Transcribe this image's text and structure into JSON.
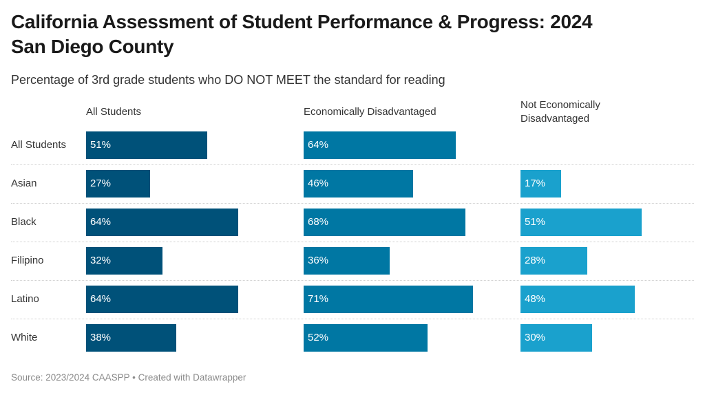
{
  "title_line1": "California Assessment of Student Performance & Progress: 2024",
  "title_line2": "San Diego County",
  "subtitle": "Percentage of 3rd grade students who DO NOT MEET the standard for reading",
  "source": "Source: 2023/2024 CAASPP • Created with Datawrapper",
  "chart_data": {
    "type": "bar",
    "orientation": "horizontal",
    "layout": "small-multiples (3 columns)",
    "title": "California Assessment of Student Performance & Progress: 2024 San Diego County",
    "subtitle": "Percentage of 3rd grade students who DO NOT MEET the standard for reading",
    "categories": [
      "All Students",
      "Asian",
      "Black",
      "Filipino",
      "Latino",
      "White"
    ],
    "unit": "%",
    "xlim": [
      0,
      100
    ],
    "grid": false,
    "series": [
      {
        "name": "All Students",
        "color": "#005179",
        "values": [
          51,
          27,
          64,
          32,
          64,
          38
        ]
      },
      {
        "name": "Economically Disadvantaged",
        "color": "#0077a3",
        "values": [
          64,
          46,
          68,
          36,
          71,
          52
        ]
      },
      {
        "name": "Not Economically Disadvantaged",
        "color": "#1aa1cd",
        "values": [
          null,
          17,
          51,
          28,
          48,
          30
        ]
      }
    ],
    "source": "Source: 2023/2024 CAASPP • Created with Datawrapper"
  }
}
